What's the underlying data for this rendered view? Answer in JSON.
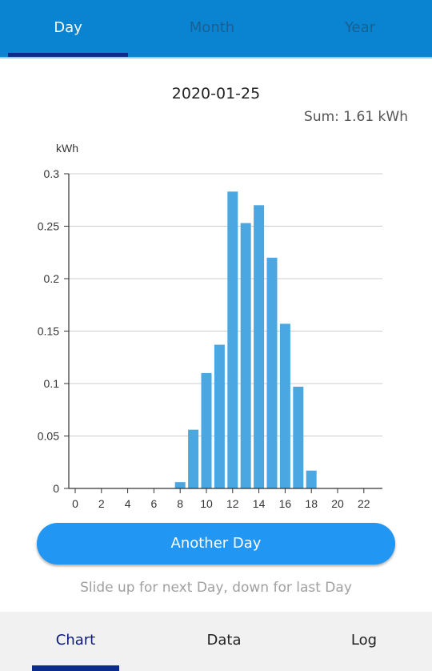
{
  "top_tabs": [
    {
      "label": "Day"
    },
    {
      "label": "Month"
    },
    {
      "label": "Year"
    }
  ],
  "date": "2020-01-25",
  "sum": "Sum: 1.61 kWh",
  "chart_data": {
    "type": "bar",
    "ylabel": "kWh",
    "ylim": [
      0,
      0.3
    ],
    "y_ticks": [
      "0",
      "0.05",
      "0.1",
      "0.15",
      "0.2",
      "0.25",
      "0.3"
    ],
    "x_ticks": [
      "0",
      "2",
      "4",
      "6",
      "8",
      "10",
      "12",
      "14",
      "16",
      "18",
      "20",
      "22"
    ],
    "x": [
      8,
      9,
      10,
      11,
      12,
      13,
      14,
      15,
      16,
      17,
      18
    ],
    "values": [
      0.006,
      0.056,
      0.11,
      0.137,
      0.283,
      0.253,
      0.27,
      0.22,
      0.157,
      0.097,
      0.017
    ],
    "grid": true,
    "bar_color": "#4AA7E2"
  },
  "another_day_button": "Another Day",
  "hint": "Slide up for next Day, down for last Day",
  "bottom_tabs": [
    {
      "label": "Chart"
    },
    {
      "label": "Data"
    },
    {
      "label": "Log"
    }
  ],
  "colors": {
    "header": "#0A84D0",
    "accent": "#2196F3",
    "indicator": "#0b2c8c"
  }
}
